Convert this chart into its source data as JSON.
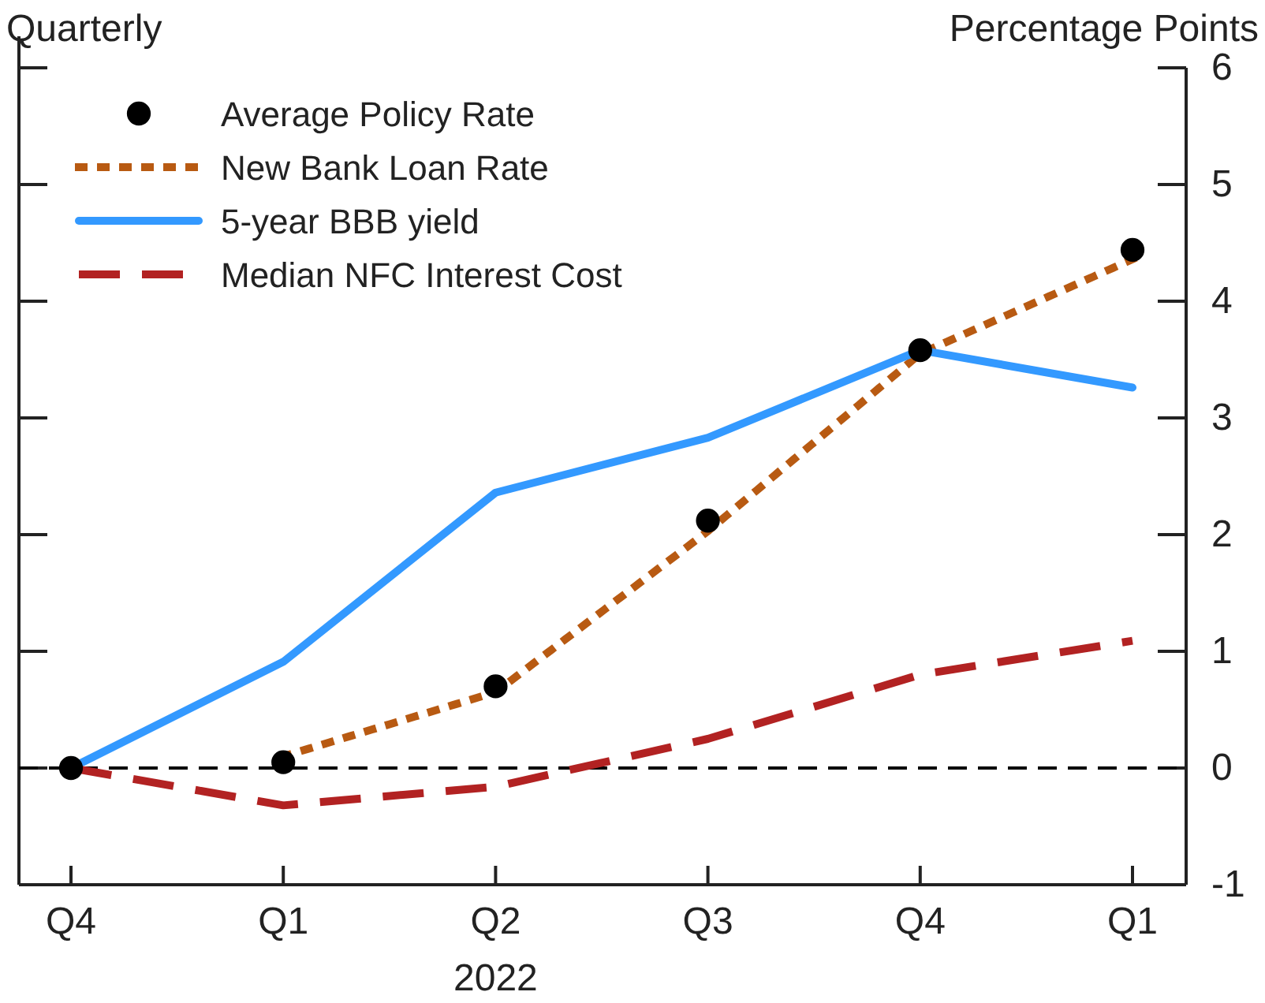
{
  "chart_data": {
    "type": "line",
    "title": "Quarterly",
    "ylabel": "Percentage Points",
    "categories": [
      "Q4",
      "Q1",
      "Q2",
      "Q3",
      "Q4",
      "Q1"
    ],
    "ylim": [
      -1,
      6
    ],
    "yticks": [
      -1,
      0,
      1,
      2,
      3,
      4,
      5,
      6
    ],
    "legend": "top left",
    "series": [
      {
        "name": "Average Policy Rate",
        "type": "scatter",
        "marker": "circle",
        "color": "#000000",
        "values": [
          0,
          0.05,
          0.7,
          2.12,
          3.58,
          4.44
        ]
      },
      {
        "name": "New Bank Loan Rate",
        "color": "#b85a12",
        "line_style": "dotted",
        "values": [
          null,
          0.1,
          0.65,
          2.03,
          3.55,
          4.36
        ]
      },
      {
        "name": "5-year BBB yield",
        "color": "#3399ff",
        "line_style": "solid",
        "values": [
          0,
          0.91,
          2.36,
          2.83,
          3.58,
          3.26
        ]
      },
      {
        "name": "Median NFC Interest Cost",
        "color": "#b22222",
        "line_style": "dashed",
        "values": [
          0,
          -0.32,
          -0.16,
          0.25,
          0.8,
          1.09
        ]
      }
    ],
    "ref_lines": [
      {
        "axis": "y",
        "value": 0,
        "color": "#000000",
        "line_style": "dashed"
      }
    ],
    "annotations": [
      "2022"
    ]
  }
}
